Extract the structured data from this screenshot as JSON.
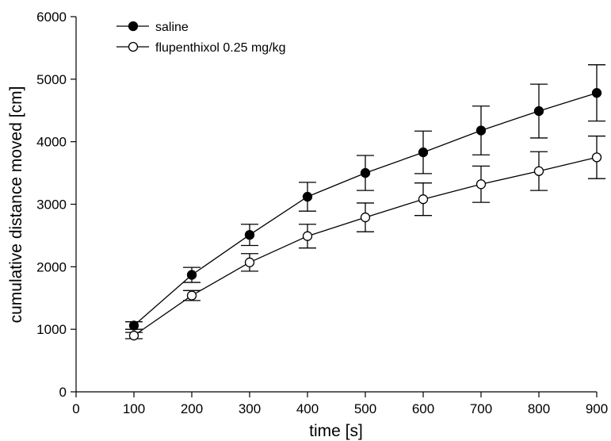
{
  "chart_data": {
    "type": "line",
    "xlabel": "time [s]",
    "ylabel": "cumulative distance moved [cm]",
    "xlim": [
      0,
      900
    ],
    "ylim": [
      0,
      6000
    ],
    "xticks": [
      0,
      100,
      200,
      300,
      400,
      500,
      600,
      700,
      800,
      900
    ],
    "yticks": [
      0,
      1000,
      2000,
      3000,
      4000,
      5000,
      6000
    ],
    "grid": false,
    "legend_position": "top-left",
    "x": [
      100,
      200,
      300,
      400,
      500,
      600,
      700,
      800,
      900
    ],
    "series": [
      {
        "name": "saline",
        "marker": "filled-circle",
        "values": [
          1060,
          1870,
          2510,
          3120,
          3500,
          3830,
          4180,
          4490,
          4780
        ],
        "error": [
          60,
          120,
          170,
          230,
          280,
          340,
          390,
          430,
          450
        ]
      },
      {
        "name": "flupenthixol 0.25 mg/kg",
        "marker": "open-circle",
        "values": [
          900,
          1540,
          2070,
          2490,
          2790,
          3080,
          3320,
          3530,
          3750
        ],
        "error": [
          50,
          80,
          140,
          190,
          230,
          260,
          290,
          310,
          340
        ]
      }
    ]
  }
}
